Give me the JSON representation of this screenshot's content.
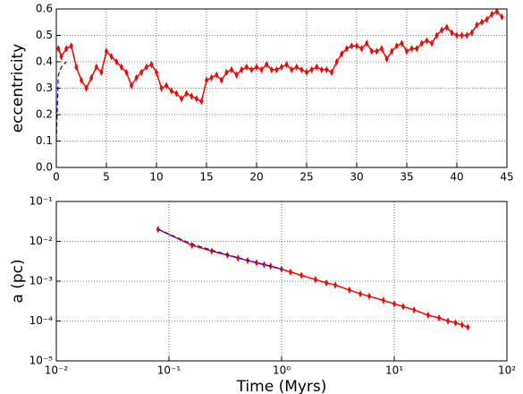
{
  "chart_data": [
    {
      "type": "line",
      "ylabel": "eccentricity",
      "xlim": [
        0,
        45
      ],
      "ylim": [
        0,
        0.6
      ],
      "grid": true,
      "xticks": [
        0,
        5,
        10,
        15,
        20,
        25,
        30,
        35,
        40,
        45
      ],
      "yticks": [
        {
          "value": 0,
          "label": "0.0"
        },
        0.1,
        0.2,
        0.3,
        0.4,
        0.5,
        0.6
      ],
      "series": [
        {
          "color": "#ff0000",
          "style": "solid",
          "markers": true,
          "x": [
            0.2,
            0.5,
            1,
            1.5,
            2,
            2.5,
            3,
            3.5,
            4,
            4.5,
            5,
            5.5,
            6,
            6.5,
            7,
            7.5,
            8,
            8.5,
            9,
            9.5,
            10,
            10.5,
            11,
            11.5,
            12,
            12.5,
            13,
            13.5,
            14,
            14.5,
            15,
            15.5,
            16,
            16.5,
            17,
            17.5,
            18,
            18.5,
            19,
            19.5,
            20,
            20.5,
            21,
            21.5,
            22,
            22.5,
            23,
            23.5,
            24,
            24.5,
            25,
            25.5,
            26,
            26.5,
            27,
            27.5,
            28,
            28.5,
            29,
            29.5,
            30,
            30.5,
            31,
            31.5,
            32,
            32.5,
            33,
            33.5,
            34,
            34.5,
            35,
            35.5,
            36,
            36.5,
            37,
            37.5,
            38,
            38.5,
            39,
            39.5,
            40,
            40.5,
            41,
            41.5,
            42,
            42.5,
            43,
            43.5,
            44,
            44.5
          ],
          "values": [
            0.45,
            0.42,
            0.45,
            0.46,
            0.38,
            0.33,
            0.3,
            0.34,
            0.38,
            0.36,
            0.44,
            0.42,
            0.4,
            0.38,
            0.36,
            0.31,
            0.34,
            0.36,
            0.38,
            0.39,
            0.36,
            0.3,
            0.31,
            0.29,
            0.28,
            0.26,
            0.28,
            0.27,
            0.26,
            0.25,
            0.33,
            0.34,
            0.35,
            0.33,
            0.36,
            0.37,
            0.35,
            0.37,
            0.38,
            0.37,
            0.38,
            0.37,
            0.39,
            0.37,
            0.37,
            0.38,
            0.39,
            0.37,
            0.38,
            0.37,
            0.36,
            0.37,
            0.38,
            0.37,
            0.37,
            0.36,
            0.4,
            0.43,
            0.45,
            0.46,
            0.46,
            0.45,
            0.47,
            0.44,
            0.44,
            0.45,
            0.41,
            0.44,
            0.46,
            0.47,
            0.44,
            0.45,
            0.45,
            0.47,
            0.48,
            0.47,
            0.5,
            0.52,
            0.53,
            0.51,
            0.5,
            0.5,
            0.5,
            0.51,
            0.54,
            0.55,
            0.56,
            0.58,
            0.59,
            0.57
          ]
        },
        {
          "color": "#0000ff",
          "style": "dashed",
          "markers": false,
          "x": [
            0,
            0.2,
            0.5,
            1
          ],
          "values": [
            0.1,
            0.35,
            0.38,
            0.4
          ]
        }
      ]
    },
    {
      "type": "line",
      "ylabel": "a (pc)",
      "xlabel": "Time (Myrs)",
      "xscale": "log",
      "yscale": "log",
      "xlim": [
        0.01,
        100
      ],
      "ylim": [
        1e-05,
        0.1
      ],
      "grid": true,
      "xticks": [
        {
          "value": 0.01,
          "label": "10⁻²"
        },
        {
          "value": 0.1,
          "label": "10⁻¹"
        },
        {
          "value": 1,
          "label": "10⁰"
        },
        {
          "value": 10,
          "label": "10¹"
        },
        {
          "value": 100,
          "label": "10²"
        }
      ],
      "yticks": [
        {
          "value": 1e-05,
          "label": "10⁻⁵"
        },
        {
          "value": 0.0001,
          "label": "10⁻⁴"
        },
        {
          "value": 0.001,
          "label": "10⁻³"
        },
        {
          "value": 0.01,
          "label": "10⁻²"
        },
        {
          "value": 0.1,
          "label": "10⁻¹"
        }
      ],
      "series": [
        {
          "color": "#ff0000",
          "style": "solid",
          "markers": true,
          "x": [
            0.08,
            0.16,
            0.24,
            0.33,
            0.41,
            0.5,
            0.6,
            0.7,
            0.8,
            1,
            1.2,
            1.5,
            2,
            2.5,
            3,
            4,
            5,
            6,
            8,
            10,
            12,
            15,
            20,
            25,
            30,
            35,
            40,
            45
          ],
          "values": [
            0.02,
            0.008,
            0.0057,
            0.0045,
            0.0038,
            0.0033,
            0.0029,
            0.0026,
            0.0024,
            0.002,
            0.0017,
            0.0014,
            0.0011,
            0.0009,
            0.0008,
            0.0006,
            0.00048,
            0.00042,
            0.00033,
            0.00027,
            0.00023,
            0.00019,
            0.00014,
            0.00012,
            0.0001,
            9e-05,
            8e-05,
            7e-05
          ]
        },
        {
          "color": "#0000ff",
          "style": "dashed",
          "markers": false,
          "x": [
            0.08,
            0.16,
            0.33,
            0.6,
            1
          ],
          "values": [
            0.02,
            0.0085,
            0.0046,
            0.0029,
            0.002
          ]
        }
      ]
    }
  ]
}
